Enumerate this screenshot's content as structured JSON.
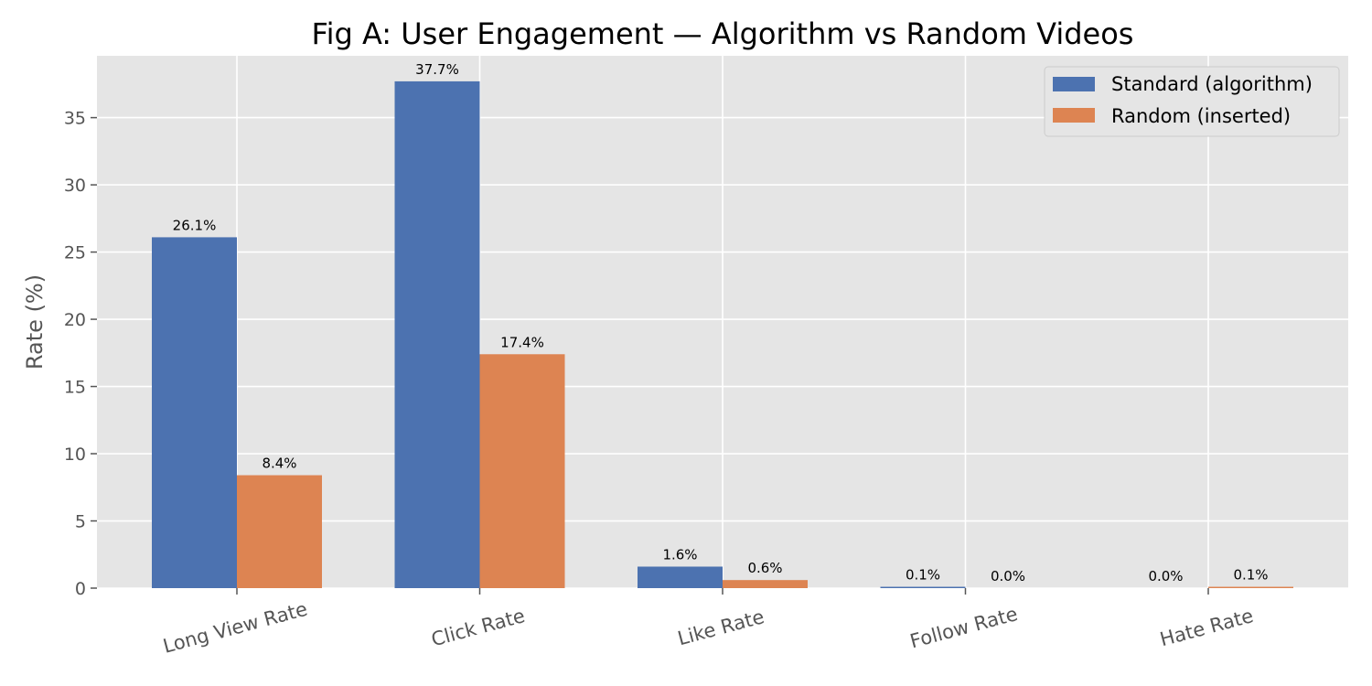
{
  "chart_data": {
    "type": "bar",
    "title": "Fig A: User Engagement — Algorithm vs Random Videos",
    "xlabel": "",
    "ylabel": "Rate (%)",
    "categories": [
      "Long View Rate",
      "Click Rate",
      "Like Rate",
      "Follow Rate",
      "Hate Rate"
    ],
    "series": [
      {
        "name": "Standard (algorithm)",
        "color": "#4c72b0",
        "values": [
          26.1,
          37.7,
          1.6,
          0.1,
          0.0
        ],
        "labels": [
          "26.1%",
          "37.7%",
          "1.6%",
          "0.1%",
          "0.0%"
        ]
      },
      {
        "name": "Random (inserted)",
        "color": "#dd8452",
        "values": [
          8.4,
          17.4,
          0.6,
          0.0,
          0.1
        ],
        "labels": [
          "8.4%",
          "17.4%",
          "0.6%",
          "0.0%",
          "0.1%"
        ]
      }
    ],
    "ylim": [
      0,
      39.6
    ],
    "yticks": [
      0,
      5,
      10,
      15,
      20,
      25,
      30,
      35
    ],
    "grid": true,
    "legend_position": "top-right",
    "background_color": "#e5e5e5"
  }
}
